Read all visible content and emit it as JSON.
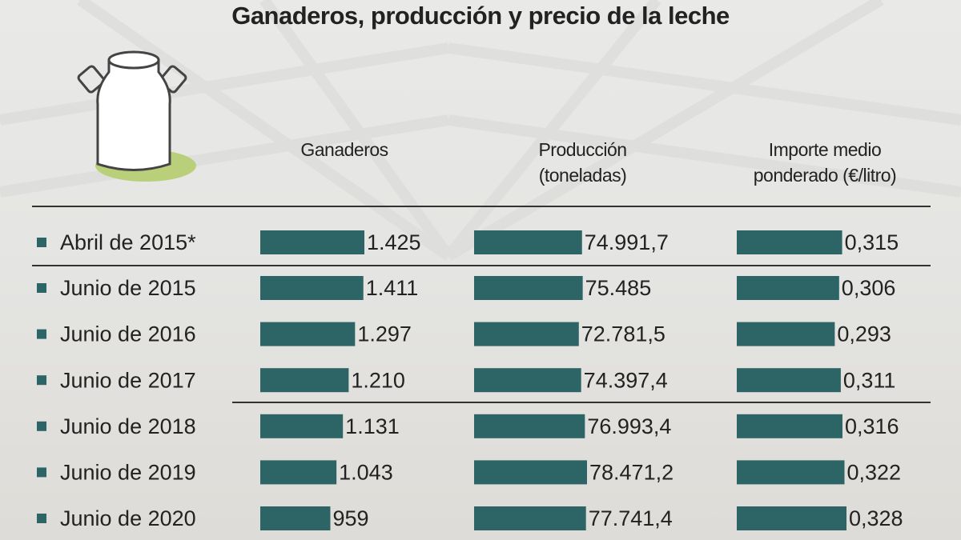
{
  "chart_data": {
    "type": "bar",
    "orientation": "horizontal",
    "title": "Ganaderos, producción y precio de la leche",
    "categories": [
      "Abril de 2015*",
      "Junio de 2015",
      "Junio de 2016",
      "Junio de 2017",
      "Junio de 2018",
      "Junio de 2019",
      "Junio de 2020"
    ],
    "series": [
      {
        "name": "Ganaderos",
        "color": "#2d6466",
        "values": [
          1425,
          1411,
          1297,
          1210,
          1131,
          1043,
          959
        ],
        "value_labels": [
          "1.425",
          "1.411",
          "1.297",
          "1.210",
          "1.131",
          "1.043",
          "959"
        ]
      },
      {
        "name": "Producción (toneladas)",
        "color": "#2d6466",
        "values": [
          74991.7,
          75485,
          72781.5,
          74397.4,
          76993.4,
          78471.2,
          77741.4
        ],
        "value_labels": [
          "74.991,7",
          "75.485",
          "72.781,5",
          "74.397,4",
          "76.993,4",
          "78.471,2",
          "77.741,4"
        ]
      },
      {
        "name": "Importe medio ponderado (€/litro)",
        "color": "#2d6466",
        "values": [
          0.315,
          0.306,
          0.293,
          0.311,
          0.316,
          0.322,
          0.328
        ],
        "value_labels": [
          "0,315",
          "0,306",
          "0,293",
          "0,311",
          "0,316",
          "0,322",
          "0,328"
        ]
      }
    ]
  }
}
